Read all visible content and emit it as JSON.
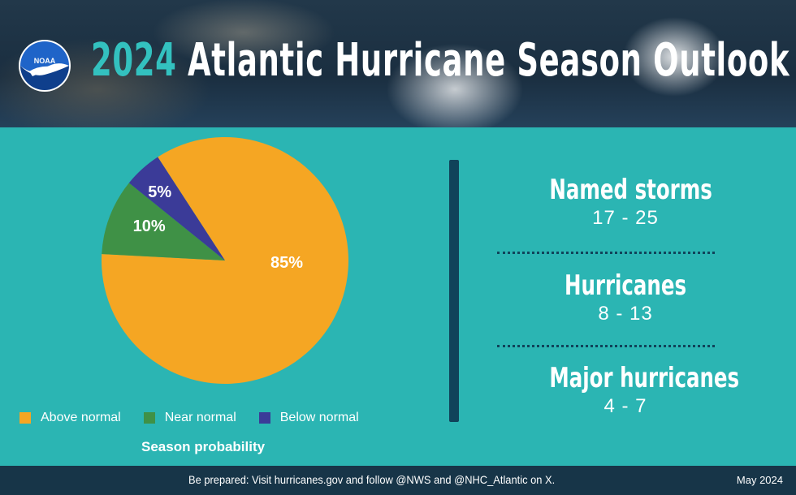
{
  "header": {
    "year": "2024",
    "title": "Atlantic Hurricane Season Outlook",
    "logo_text": "NOAA"
  },
  "chart_data": {
    "type": "pie",
    "title": "",
    "xlabel": "Season probability",
    "categories": [
      "Above normal",
      "Near normal",
      "Below normal"
    ],
    "values": [
      85,
      10,
      5
    ],
    "labels": [
      "85%",
      "10%",
      "5%"
    ],
    "colors": [
      "#f5a623",
      "#3f9146",
      "#3b3b98"
    ],
    "legend_position": "bottom"
  },
  "stats": [
    {
      "label": "Named storms",
      "range": "17 - 25"
    },
    {
      "label": "Hurricanes",
      "range": "8 - 13"
    },
    {
      "label": "Major hurricanes",
      "range": "4 - 7"
    }
  ],
  "footer": {
    "text": "Be prepared: Visit hurricanes.gov and follow @NWS and @NHC_Atlantic on X.",
    "date": "May 2024"
  },
  "colors": {
    "background": "#2bb5b3",
    "accent": "#33c1bf",
    "divider": "#10435a",
    "footer": "#173548"
  }
}
